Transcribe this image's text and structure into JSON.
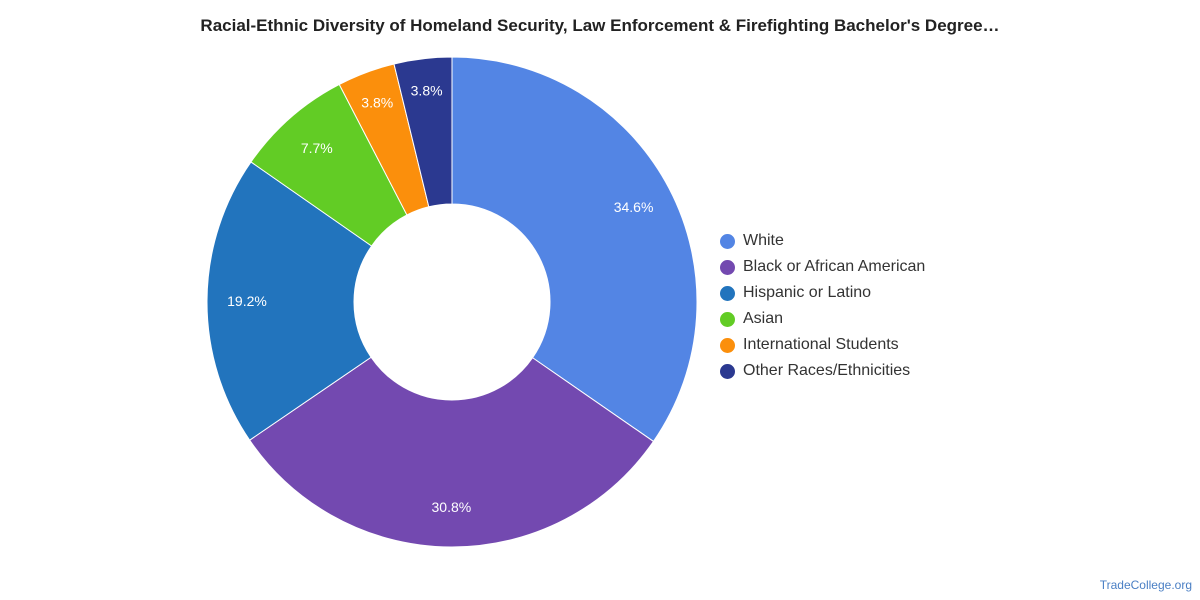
{
  "chart_data": {
    "type": "pie",
    "donut": true,
    "title": "Racial-Ethnic Diversity of Homeland Security, Law Enforcement & Firefighting Bachelor's Degree…",
    "slices": [
      {
        "label": "White",
        "value": 34.6,
        "display": "34.6%",
        "color": "#5385e4"
      },
      {
        "label": "Black or African American",
        "value": 30.8,
        "display": "30.8%",
        "color": "#7349b0"
      },
      {
        "label": "Hispanic or Latino",
        "value": 19.2,
        "display": "19.2%",
        "color": "#2274bd"
      },
      {
        "label": "Asian",
        "value": 7.7,
        "display": "7.7%",
        "color": "#62cc25"
      },
      {
        "label": "International Students",
        "value": 3.8,
        "display": "3.8%",
        "color": "#fb8f0c"
      },
      {
        "label": "Other Races/Ethnicities",
        "value": 3.8,
        "display": "3.8%",
        "color": "#2b3990"
      }
    ],
    "legend_position": "right"
  },
  "watermark": "TradeCollege.org"
}
